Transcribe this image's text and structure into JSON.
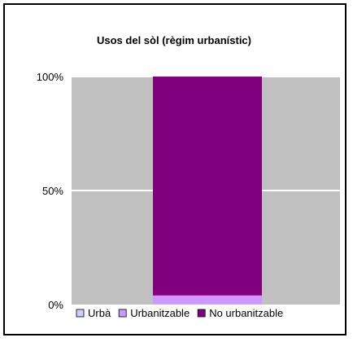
{
  "chart_data": {
    "type": "bar",
    "stacked": true,
    "percent": true,
    "title": "Usos del sòl (règim urbanístic)",
    "categories": [
      ""
    ],
    "series": [
      {
        "name": "Urbà",
        "values": [
          0.1
        ],
        "color": "#CCCCFF"
      },
      {
        "name": "Urbanitzable",
        "values": [
          3.9
        ],
        "color": "#CC99FF"
      },
      {
        "name": "No urbanitzable",
        "values": [
          96.0
        ],
        "color": "#800080"
      }
    ],
    "ylim": [
      0,
      100
    ],
    "yticks": [
      {
        "value": 0,
        "label": "0%"
      },
      {
        "value": 50,
        "label": "50%"
      },
      {
        "value": 100,
        "label": "100%"
      }
    ],
    "plot_background": "#C0C0C0",
    "gridline_color": "#FFFFFF",
    "grid": true,
    "legend_position": "bottom"
  }
}
